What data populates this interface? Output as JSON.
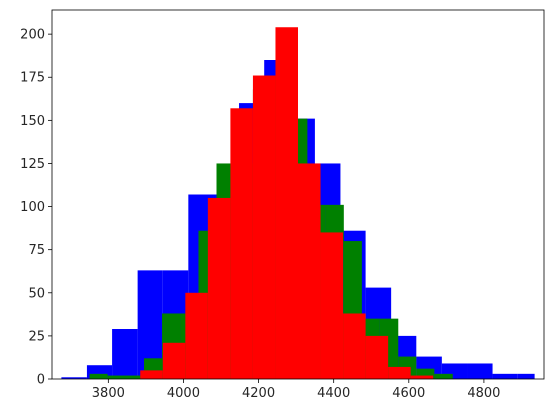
{
  "chart_data": {
    "type": "bar",
    "chart_kind": "overlaid histogram",
    "title": "",
    "xlabel": "",
    "ylabel": "",
    "xlim": [
      3650,
      4960
    ],
    "ylim": [
      0,
      214
    ],
    "x_ticks": [
      3800,
      4000,
      4200,
      4400,
      4600,
      4800
    ],
    "y_ticks": [
      0,
      25,
      50,
      75,
      100,
      125,
      150,
      175,
      200
    ],
    "grid": false,
    "legend": "none",
    "series": [
      {
        "color": "#0000ff",
        "bins": [
          {
            "x0": 3675,
            "x1": 3743,
            "count": 1
          },
          {
            "x0": 3743,
            "x1": 3810,
            "count": 8
          },
          {
            "x0": 3810,
            "x1": 3878,
            "count": 29
          },
          {
            "x0": 3878,
            "x1": 3945,
            "count": 63
          },
          {
            "x0": 3945,
            "x1": 4013,
            "count": 63
          },
          {
            "x0": 4013,
            "x1": 4080,
            "count": 107
          },
          {
            "x0": 4080,
            "x1": 4148,
            "count": 107
          },
          {
            "x0": 4148,
            "x1": 4215,
            "count": 160
          },
          {
            "x0": 4215,
            "x1": 4283,
            "count": 185
          },
          {
            "x0": 4283,
            "x1": 4350,
            "count": 151
          },
          {
            "x0": 4350,
            "x1": 4418,
            "count": 125
          },
          {
            "x0": 4418,
            "x1": 4485,
            "count": 86
          },
          {
            "x0": 4485,
            "x1": 4553,
            "count": 53
          },
          {
            "x0": 4553,
            "x1": 4620,
            "count": 25
          },
          {
            "x0": 4620,
            "x1": 4688,
            "count": 13
          },
          {
            "x0": 4688,
            "x1": 4755,
            "count": 9
          },
          {
            "x0": 4755,
            "x1": 4823,
            "count": 9
          },
          {
            "x0": 4823,
            "x1": 4890,
            "count": 3
          },
          {
            "x0": 4890,
            "x1": 4935,
            "count": 3
          }
        ]
      },
      {
        "color": "#008000",
        "bins": [
          {
            "x0": 3750,
            "x1": 3798,
            "count": 3
          },
          {
            "x0": 3798,
            "x1": 3847,
            "count": 2
          },
          {
            "x0": 3847,
            "x1": 3895,
            "count": 2
          },
          {
            "x0": 3895,
            "x1": 3943,
            "count": 12
          },
          {
            "x0": 3943,
            "x1": 3992,
            "count": 38
          },
          {
            "x0": 3992,
            "x1": 4040,
            "count": 38
          },
          {
            "x0": 4040,
            "x1": 4088,
            "count": 86
          },
          {
            "x0": 4088,
            "x1": 4137,
            "count": 125
          },
          {
            "x0": 4137,
            "x1": 4185,
            "count": 125
          },
          {
            "x0": 4185,
            "x1": 4233,
            "count": 168
          },
          {
            "x0": 4233,
            "x1": 4282,
            "count": 176
          },
          {
            "x0": 4282,
            "x1": 4330,
            "count": 151
          },
          {
            "x0": 4330,
            "x1": 4378,
            "count": 101
          },
          {
            "x0": 4378,
            "x1": 4427,
            "count": 101
          },
          {
            "x0": 4427,
            "x1": 4475,
            "count": 80
          },
          {
            "x0": 4475,
            "x1": 4523,
            "count": 35
          },
          {
            "x0": 4523,
            "x1": 4572,
            "count": 35
          },
          {
            "x0": 4572,
            "x1": 4620,
            "count": 13
          },
          {
            "x0": 4620,
            "x1": 4668,
            "count": 6
          },
          {
            "x0": 4668,
            "x1": 4717,
            "count": 3
          }
        ]
      },
      {
        "color": "#ff0000",
        "bins": [
          {
            "x0": 3885,
            "x1": 3945,
            "count": 5
          },
          {
            "x0": 3945,
            "x1": 4005,
            "count": 21
          },
          {
            "x0": 4005,
            "x1": 4065,
            "count": 50
          },
          {
            "x0": 4065,
            "x1": 4125,
            "count": 105
          },
          {
            "x0": 4125,
            "x1": 4185,
            "count": 157
          },
          {
            "x0": 4185,
            "x1": 4245,
            "count": 176
          },
          {
            "x0": 4245,
            "x1": 4305,
            "count": 204
          },
          {
            "x0": 4305,
            "x1": 4365,
            "count": 125
          },
          {
            "x0": 4365,
            "x1": 4425,
            "count": 85
          },
          {
            "x0": 4425,
            "x1": 4485,
            "count": 38
          },
          {
            "x0": 4485,
            "x1": 4545,
            "count": 25
          },
          {
            "x0": 4545,
            "x1": 4605,
            "count": 7
          },
          {
            "x0": 4605,
            "x1": 4665,
            "count": 2
          }
        ]
      }
    ]
  }
}
